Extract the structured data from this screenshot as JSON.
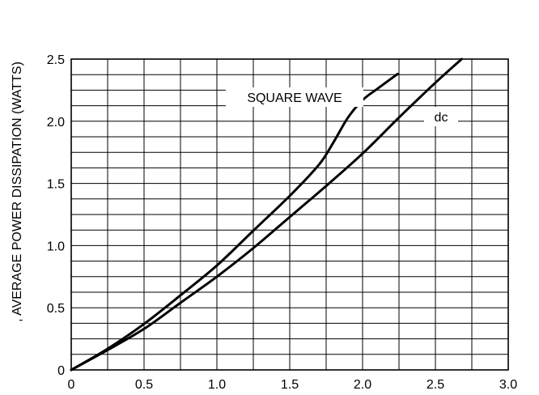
{
  "chart_data": {
    "type": "line",
    "title": "",
    "xlabel": "",
    "ylabel": ", AVERAGE POWER DISSIPATION (WATTS)",
    "xlim": [
      0,
      3.0
    ],
    "ylim": [
      0,
      2.5
    ],
    "x_ticks": [
      0,
      0.25,
      0.5,
      0.75,
      1.0,
      1.25,
      1.5,
      1.75,
      2.0,
      2.25,
      2.5,
      2.75,
      3.0
    ],
    "y_ticks": [
      0,
      0.125,
      0.25,
      0.375,
      0.5,
      0.625,
      0.75,
      0.875,
      1.0,
      1.125,
      1.25,
      1.375,
      1.5,
      1.625,
      1.75,
      1.875,
      2.0,
      2.125,
      2.25,
      2.375,
      2.5
    ],
    "x_tick_labels": [
      "0",
      "0.5",
      "1.0",
      "1.5",
      "2.0",
      "2.5",
      "3.0"
    ],
    "y_tick_labels": [
      "0",
      "0.5",
      "1.0",
      "1.5",
      "2.0",
      "2.5"
    ],
    "grid": true,
    "legend": "none",
    "line_color": "#000000",
    "series": [
      {
        "label": "SQUARE WAVE",
        "x": [
          0,
          0.25,
          0.5,
          0.75,
          1.0,
          1.25,
          1.5,
          1.7,
          1.8,
          1.9,
          2.0,
          2.1,
          2.24
        ],
        "y": [
          0,
          0.17,
          0.37,
          0.6,
          0.84,
          1.12,
          1.4,
          1.65,
          1.83,
          2.03,
          2.17,
          2.26,
          2.38
        ]
      },
      {
        "label": "dc",
        "x": [
          0,
          0.25,
          0.5,
          0.75,
          1.0,
          1.25,
          1.5,
          1.75,
          2.0,
          2.25,
          2.5,
          2.68
        ],
        "y": [
          0,
          0.16,
          0.33,
          0.54,
          0.75,
          0.98,
          1.23,
          1.48,
          1.74,
          2.03,
          2.31,
          2.5
        ]
      }
    ]
  }
}
